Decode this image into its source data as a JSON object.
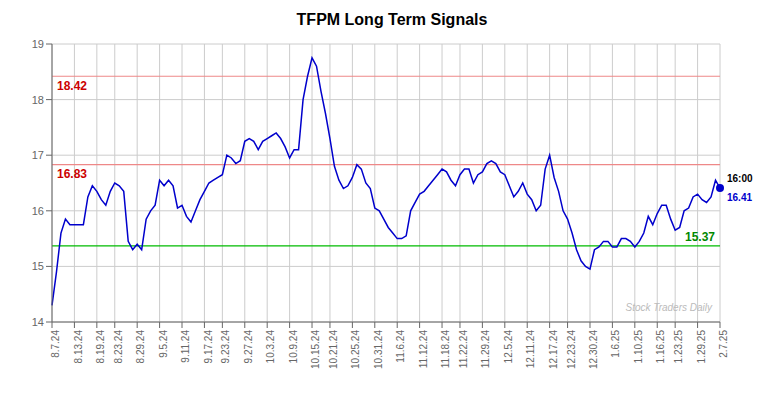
{
  "chart_data": {
    "type": "line",
    "title": "TFPM Long Term Signals",
    "color": "#0000cc",
    "ylim": [
      14,
      19
    ],
    "yticks": [
      14,
      15,
      16,
      17,
      18,
      19
    ],
    "grid": true,
    "watermark": "Stock Traders Daily",
    "categories": [
      "8.7.24",
      null,
      null,
      null,
      null,
      "8.13.24",
      null,
      null,
      null,
      null,
      "8.19.24",
      null,
      null,
      null,
      "8.23.24",
      null,
      null,
      null,
      null,
      "8.29.24",
      null,
      null,
      null,
      null,
      "9.5.24",
      null,
      null,
      null,
      null,
      "9.11.24",
      null,
      null,
      null,
      null,
      "9.17.24",
      null,
      null,
      null,
      "9.23.24",
      null,
      null,
      null,
      null,
      "9.27.24",
      null,
      null,
      null,
      null,
      "10.3.24",
      null,
      null,
      null,
      null,
      "10.9.24",
      null,
      null,
      null,
      null,
      "10.15.24",
      null,
      null,
      null,
      "10.21.24",
      null,
      null,
      null,
      null,
      "10.25.24",
      null,
      null,
      null,
      null,
      "10.31.24",
      null,
      null,
      null,
      null,
      "11.6.24",
      null,
      null,
      null,
      null,
      "11.12.24",
      null,
      null,
      null,
      null,
      "11.18.24",
      null,
      null,
      null,
      "11.22.24",
      null,
      null,
      null,
      null,
      "11.29.24",
      null,
      null,
      null,
      null,
      "12.5.24",
      null,
      null,
      null,
      null,
      "12.11.24",
      null,
      null,
      null,
      null,
      "12.17.24",
      null,
      null,
      null,
      "12.23.24",
      null,
      null,
      null,
      null,
      "12.30.24",
      null,
      null,
      null,
      null,
      "1.6.25",
      null,
      null,
      null,
      null,
      "1.10.25",
      null,
      null,
      null,
      null,
      "1.16.25",
      null,
      null,
      null,
      "1.23.25",
      null,
      null,
      null,
      null,
      "1.29.25",
      null,
      null,
      null,
      null,
      "2.7.25"
    ],
    "values": [
      14.3,
      14.9,
      15.6,
      15.85,
      15.75,
      15.75,
      15.75,
      15.75,
      16.25,
      16.45,
      16.35,
      16.2,
      16.1,
      16.35,
      16.5,
      16.45,
      16.35,
      15.45,
      15.3,
      15.4,
      15.3,
      15.85,
      16.0,
      16.1,
      16.55,
      16.45,
      16.55,
      16.45,
      16.05,
      16.1,
      15.9,
      15.8,
      16.0,
      16.2,
      16.35,
      16.5,
      16.55,
      16.6,
      16.65,
      17.0,
      16.95,
      16.85,
      16.9,
      17.25,
      17.3,
      17.25,
      17.1,
      17.25,
      17.3,
      17.35,
      17.4,
      17.3,
      17.15,
      16.95,
      17.1,
      17.1,
      18.0,
      18.42,
      18.75,
      18.6,
      18.15,
      17.75,
      17.3,
      16.8,
      16.55,
      16.4,
      16.45,
      16.6,
      16.83,
      16.75,
      16.5,
      16.4,
      16.05,
      16.0,
      15.85,
      15.7,
      15.6,
      15.5,
      15.5,
      15.55,
      16.0,
      16.15,
      16.3,
      16.35,
      16.45,
      16.55,
      16.65,
      16.75,
      16.7,
      16.55,
      16.45,
      16.65,
      16.75,
      16.75,
      16.5,
      16.65,
      16.7,
      16.85,
      16.9,
      16.85,
      16.7,
      16.65,
      16.45,
      16.25,
      16.35,
      16.5,
      16.3,
      16.2,
      16.0,
      16.1,
      16.75,
      17.0,
      16.6,
      16.35,
      16.0,
      15.85,
      15.6,
      15.3,
      15.1,
      15.0,
      14.95,
      15.3,
      15.35,
      15.45,
      15.45,
      15.35,
      15.35,
      15.5,
      15.5,
      15.45,
      15.35,
      15.45,
      15.6,
      15.9,
      15.75,
      15.95,
      16.1,
      16.1,
      15.85,
      15.65,
      15.7,
      16.0,
      16.05,
      16.25,
      16.3,
      16.2,
      16.15,
      16.25,
      16.55,
      16.41
    ],
    "annotations": [
      {
        "text": "18.42",
        "y": 18.42,
        "color": "#cc0000",
        "line_color": "#ee8888"
      },
      {
        "text": "16.83",
        "y": 16.83,
        "color": "#cc0000",
        "line_color": "#ee8888"
      },
      {
        "text": "15.37",
        "y": 15.37,
        "color": "#008800",
        "line_color": "#00bb00"
      }
    ],
    "last_point": {
      "time": "16:00",
      "value": 16.41,
      "color": "#0000cc",
      "time_color": "#000000"
    }
  }
}
